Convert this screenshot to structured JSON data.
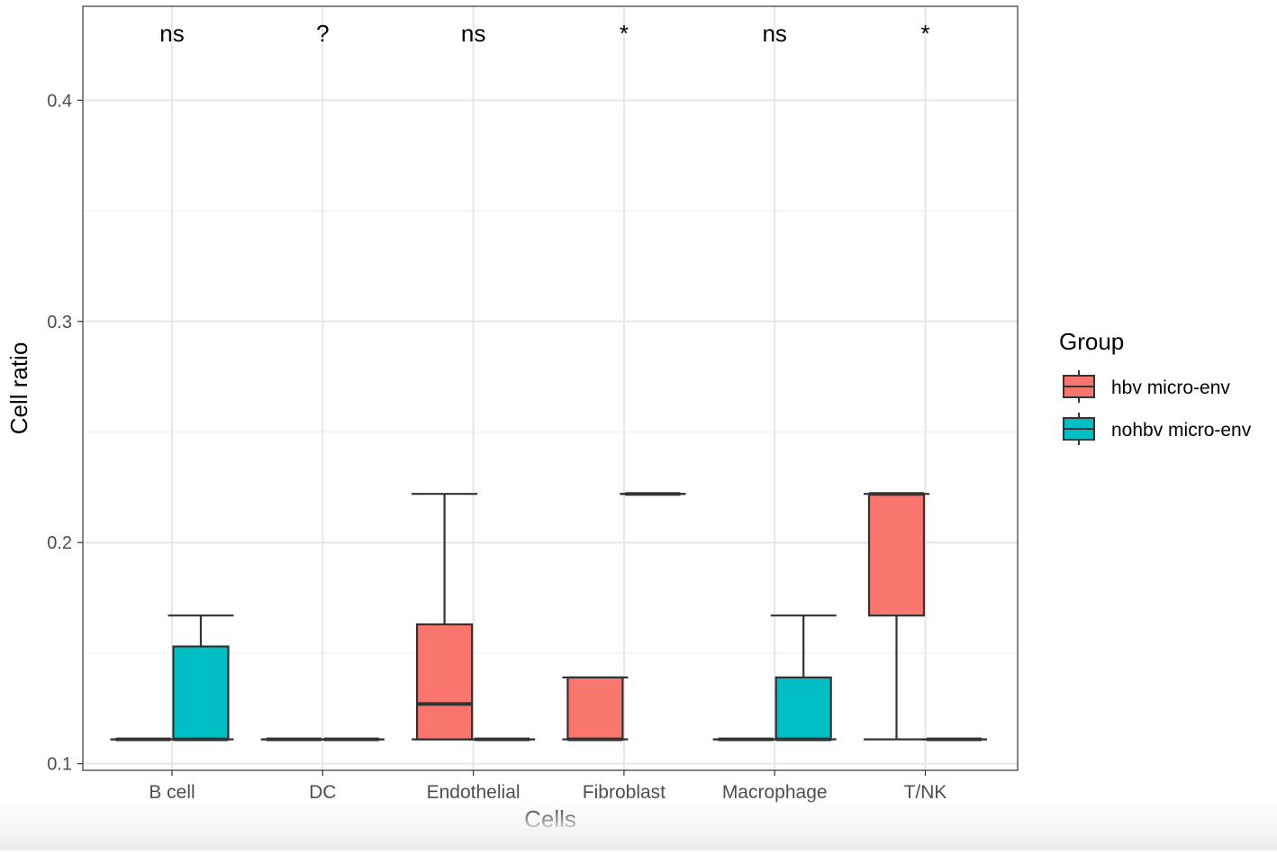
{
  "chart_data": {
    "type": "box",
    "title": "",
    "xlabel": "Cells",
    "ylabel": "Cell ratio",
    "ylim": [
      0.097,
      0.4425
    ],
    "yticks": [
      {
        "value": 0.1,
        "label": "0.1"
      },
      {
        "value": 0.2,
        "label": "0.2"
      },
      {
        "value": 0.3,
        "label": "0.3"
      },
      {
        "value": 0.4,
        "label": "0.4"
      }
    ],
    "minor_gridlines": [
      0.15,
      0.25,
      0.35
    ],
    "grid": true,
    "categories": [
      "B cell",
      "DC",
      "Endothelial",
      "Fibroblast",
      "Macrophage",
      "T/NK"
    ],
    "significance": [
      "ns",
      "?",
      "ns",
      "*",
      "ns",
      "*"
    ],
    "legend": {
      "title": "Group",
      "position": "right",
      "entries": [
        {
          "label": "hbv micro-env",
          "color": "#F8766D"
        },
        {
          "label": "nohbv micro-env",
          "color": "#00BFC4"
        }
      ]
    },
    "series": [
      {
        "name": "hbv micro-env",
        "color": "#F8766D",
        "boxes": [
          {
            "category": "B cell",
            "min": 0.111,
            "q1": 0.111,
            "median": 0.111,
            "q3": 0.111,
            "max": 0.111
          },
          {
            "category": "DC",
            "min": 0.111,
            "q1": 0.111,
            "median": 0.111,
            "q3": 0.111,
            "max": 0.111
          },
          {
            "category": "Endothelial",
            "min": 0.111,
            "q1": 0.111,
            "median": 0.127,
            "q3": 0.163,
            "max": 0.222
          },
          {
            "category": "Fibroblast",
            "min": 0.111,
            "q1": 0.111,
            "median": 0.111,
            "q3": 0.139,
            "max": 0.139
          },
          {
            "category": "Macrophage",
            "min": 0.111,
            "q1": 0.111,
            "median": 0.111,
            "q3": 0.111,
            "max": 0.111
          },
          {
            "category": "T/NK",
            "min": 0.111,
            "q1": 0.167,
            "median": 0.222,
            "q3": 0.222,
            "max": 0.222
          }
        ]
      },
      {
        "name": "nohbv micro-env",
        "color": "#00BFC4",
        "boxes": [
          {
            "category": "B cell",
            "min": 0.111,
            "q1": 0.111,
            "median": 0.111,
            "q3": 0.153,
            "max": 0.167
          },
          {
            "category": "DC",
            "min": 0.111,
            "q1": 0.111,
            "median": 0.111,
            "q3": 0.111,
            "max": 0.111
          },
          {
            "category": "Endothelial",
            "min": 0.111,
            "q1": 0.111,
            "median": 0.111,
            "q3": 0.111,
            "max": 0.111
          },
          {
            "category": "Fibroblast",
            "min": 0.222,
            "q1": 0.222,
            "median": 0.222,
            "q3": 0.222,
            "max": 0.222
          },
          {
            "category": "Macrophage",
            "min": 0.111,
            "q1": 0.111,
            "median": 0.111,
            "q3": 0.139,
            "max": 0.167
          },
          {
            "category": "T/NK",
            "min": 0.111,
            "q1": 0.111,
            "median": 0.111,
            "q3": 0.111,
            "max": 0.111
          }
        ]
      }
    ]
  }
}
